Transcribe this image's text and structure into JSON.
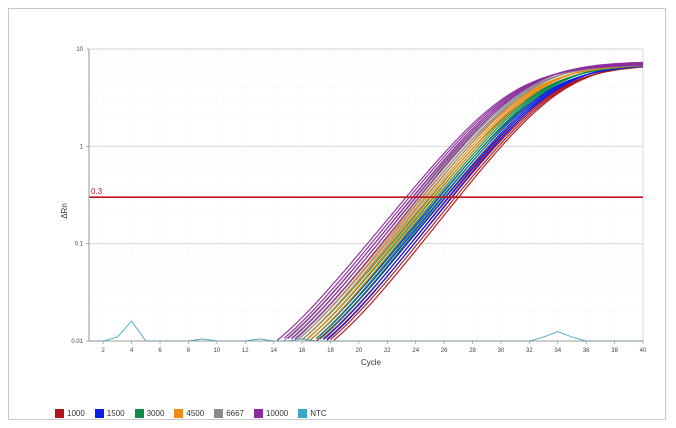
{
  "chart_data": {
    "type": "line",
    "xlabel": "Cycle",
    "ylabel": "ΔRn",
    "x_scale": "linear",
    "y_scale": "log",
    "xlim": [
      1,
      40
    ],
    "ylim": [
      0.01,
      10
    ],
    "x_ticks": [
      "2",
      "4",
      "6",
      "8",
      "10",
      "12",
      "14",
      "16",
      "18",
      "20",
      "22",
      "24",
      "26",
      "28",
      "30",
      "32",
      "34",
      "36",
      "38",
      "40"
    ],
    "y_ticks": [
      "10",
      "1",
      "0.1",
      "0.01"
    ],
    "grid": true,
    "threshold": {
      "label": "0.3",
      "value": 0.3,
      "color": "#c0141c"
    },
    "legend_position": "bottom-left",
    "series": [
      {
        "name": "1000",
        "color": "#b0141c",
        "ct": 26.6
      },
      {
        "name": "1500",
        "color": "#0a1ee6",
        "ct": 26.1
      },
      {
        "name": "3000",
        "color": "#0f8a4a",
        "ct": 25.5
      },
      {
        "name": "4500",
        "color": "#f08c14",
        "ct": 24.9
      },
      {
        "name": "6667",
        "color": "#8c8c8c",
        "ct": 24.3
      },
      {
        "name": "10000",
        "color": "#8c2c9c",
        "ct": 23.8
      },
      {
        "name": "NTC",
        "color": "#3aa6c8",
        "x": [
          1,
          2,
          3,
          4,
          5,
          6,
          7,
          8,
          9,
          10,
          11,
          12,
          13,
          14,
          15,
          16,
          17,
          18,
          19,
          20,
          21,
          22,
          23,
          24,
          25,
          26,
          27,
          28,
          29,
          30,
          31,
          32,
          33,
          34,
          35,
          36,
          37,
          38,
          39,
          40
        ],
        "y": [
          0.01,
          0.01,
          0.011,
          0.016,
          0.01,
          0.01,
          0.01,
          0.01,
          0.0105,
          0.01,
          0.01,
          0.01,
          0.0105,
          0.01,
          0.01,
          0.0105,
          0.01,
          0.01,
          0.01,
          0.01,
          0.01,
          0.01,
          0.01,
          0.01,
          0.01,
          0.01,
          0.01,
          0.01,
          0.01,
          0.01,
          0.01,
          0.01,
          0.011,
          0.0125,
          0.011,
          0.01,
          0.01,
          0.01,
          0.01,
          0.01
        ]
      }
    ]
  }
}
